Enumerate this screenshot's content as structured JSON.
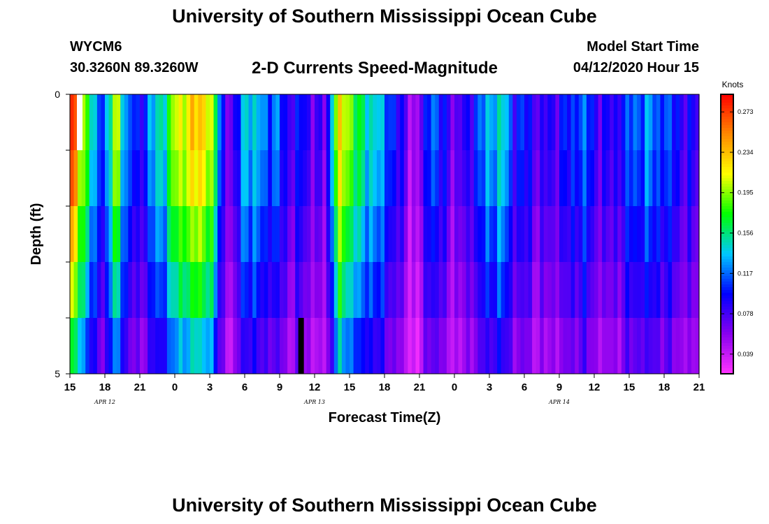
{
  "header": {
    "title": "University of Southern Mississippi Ocean Cube",
    "station_id": "WYCM6",
    "coordinates": "30.3260N 89.3260W",
    "chart_title": "2-D Currents Speed-Magnitude",
    "model_start_label": "Model Start Time",
    "model_start_value": "04/12/2020 Hour 15"
  },
  "footer": {
    "title": "University of Southern Mississippi Ocean Cube"
  },
  "chart_data": {
    "type": "heatmap",
    "title": "2-D Currents Speed-Magnitude",
    "xlabel": "Forecast Time(Z)",
    "ylabel": "Depth (ft)",
    "x_tick_labels": [
      "15",
      "18",
      "21",
      "0",
      "3",
      "6",
      "9",
      "12",
      "15",
      "18",
      "21",
      "0",
      "3",
      "6",
      "9",
      "12",
      "15",
      "18",
      "21"
    ],
    "date_labels": [
      {
        "text": "APR 12",
        "tick_index": 1
      },
      {
        "text": "APR 13",
        "tick_index": 7
      },
      {
        "text": "APR 14",
        "tick_index": 14
      }
    ],
    "y_tick_labels": [
      "0",
      "5"
    ],
    "ylim": [
      0,
      5
    ],
    "time_range_hours": [
      0,
      54
    ],
    "depth_rows": [
      "0-1 ft",
      "1-2 ft",
      "2-3 ft",
      "3-4 ft",
      "4-5 ft"
    ],
    "colorbar": {
      "unit": "Knots",
      "ticks": [
        "0.273",
        "0.234",
        "0.195",
        "0.156",
        "0.117",
        "0.078",
        "0.039"
      ],
      "range": [
        0.02,
        0.29
      ],
      "colors": [
        "#ff33ff",
        "#8800ee",
        "#0000ff",
        "#00c8ff",
        "#00ff00",
        "#ffff00",
        "#ff8800",
        "#ff0000"
      ]
    },
    "columns_per_hour": 3,
    "speed_profile_surface_knots": [
      0.28,
      0.22,
      0.13,
      0.11,
      0.21,
      0.11,
      0.09,
      0.13,
      0.15,
      0.2,
      0.22,
      0.23,
      0.22,
      0.1,
      0.06,
      0.15,
      0.13,
      0.12,
      0.11,
      0.08,
      0.1,
      0.07,
      0.07,
      0.22,
      0.2,
      0.15,
      0.15,
      0.12,
      0.1,
      0.06,
      0.05,
      0.13,
      0.09,
      0.07,
      0.08,
      0.11,
      0.13,
      0.15,
      0.1,
      0.1,
      0.08,
      0.08,
      0.09,
      0.1,
      0.12,
      0.09,
      0.08,
      0.09,
      0.11,
      0.12,
      0.12,
      0.11,
      0.1,
      0.08,
      0.09
    ],
    "depth_attenuation": [
      1.0,
      0.95,
      0.85,
      0.75,
      0.62
    ],
    "missing_cells": [
      {
        "time_hour": 0.6,
        "depth_row": 0,
        "fill": "white"
      },
      {
        "time_hour": 19.6,
        "depth_row": 4,
        "fill": "black"
      }
    ]
  }
}
